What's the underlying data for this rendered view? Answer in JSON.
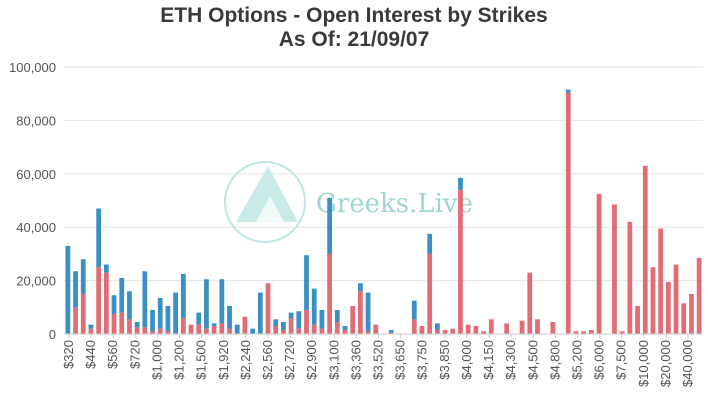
{
  "chart_data": {
    "type": "bar",
    "stacked": true,
    "title": "ETH Options - Open Interest by Strikes",
    "subtitle": "As Of: 21/09/07",
    "ylim": [
      0,
      100000
    ],
    "y_ticks": [
      "0",
      "20,000",
      "40,000",
      "60,000",
      "80,000",
      "100,000"
    ],
    "grid": true,
    "watermark": "Greeks.Live",
    "x_tick_labels": [
      "$320",
      "$440",
      "$560",
      "$720",
      "$1,000",
      "$1,200",
      "$1,500",
      "$1,920",
      "$2,240",
      "$2,560",
      "$2,720",
      "$2,900",
      "$3,100",
      "$3,360",
      "$3,520",
      "$3,650",
      "$3,750",
      "$3,850",
      "$4,000",
      "$4,150",
      "$4,300",
      "$4,500",
      "$4,800",
      "$5,200",
      "$6,000",
      "$7,500",
      "$10,000",
      "$20,000",
      "$40,000"
    ],
    "series": [
      {
        "color": "#e06c75",
        "values": [
          0,
          10000,
          15000,
          2000,
          25000,
          23000,
          7500,
          8000,
          5500,
          2500,
          2500,
          1000,
          2000,
          1000,
          0,
          6000,
          3500,
          3500,
          2000,
          3000,
          4000,
          2000,
          0,
          6500,
          0,
          0,
          19000,
          3000,
          1500,
          6000,
          2000,
          9000,
          3500,
          2000,
          30000,
          4500,
          1500,
          10500,
          16000,
          1000,
          3500,
          0,
          500,
          0,
          0,
          5500,
          3000,
          30000,
          1500,
          1500,
          2000,
          54000,
          3500,
          3000,
          1000,
          5500,
          0,
          4000,
          0,
          5000,
          23000,
          5500,
          0,
          4500,
          0,
          90500,
          1000,
          1000,
          1500,
          52500,
          0,
          48500,
          1000,
          42000,
          10500,
          63000,
          25000,
          39500,
          19500,
          26000,
          11500,
          15000,
          28500
        ]
      },
      {
        "color": "#3a8fc4",
        "values": [
          33000,
          13500,
          13000,
          1500,
          22000,
          3000,
          7000,
          13000,
          10500,
          2000,
          21000,
          8000,
          11500,
          9500,
          15500,
          16500,
          0,
          4500,
          18500,
          1000,
          16500,
          8500,
          3500,
          0,
          2000,
          15500,
          0,
          2500,
          3000,
          2000,
          6500,
          20500,
          13500,
          7000,
          21000,
          4500,
          1500,
          0,
          3000,
          14500,
          0,
          0,
          1000,
          0,
          0,
          7000,
          0,
          7500,
          2500,
          0,
          0,
          4500,
          0,
          0,
          0,
          0,
          0,
          0,
          0,
          0,
          0,
          0,
          0,
          0,
          0,
          1000,
          0,
          0,
          0,
          0,
          0,
          0,
          0,
          0,
          0,
          0,
          0,
          0,
          0,
          0,
          0,
          0,
          0
        ]
      }
    ]
  }
}
